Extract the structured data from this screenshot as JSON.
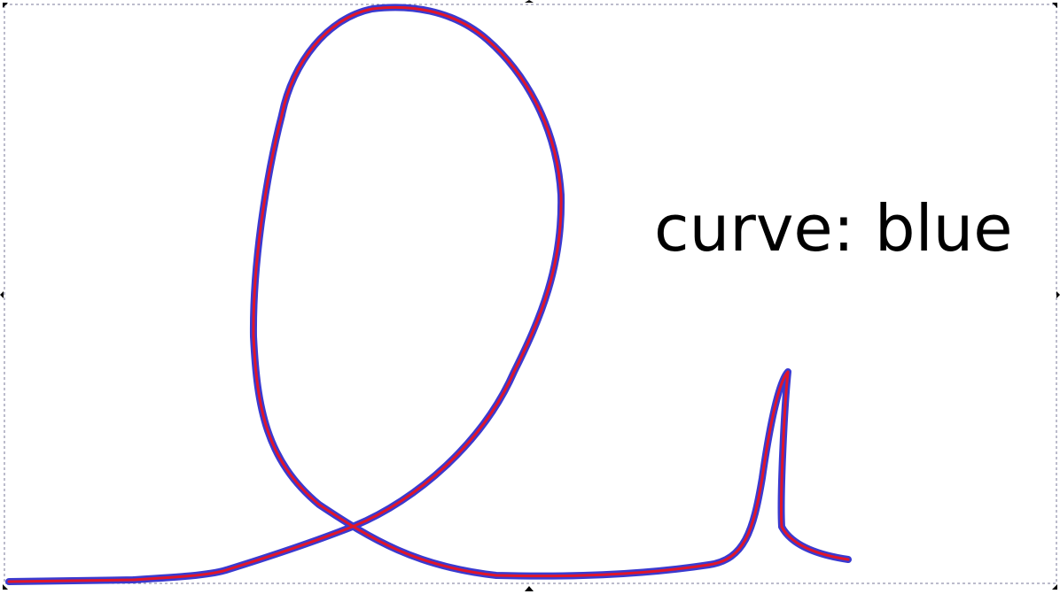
{
  "label": {
    "text": "curve: blue"
  },
  "colors": {
    "blue_curve": "#3a3ad0",
    "red_curve": "#e0162a",
    "selection_border": "#7a7a9a",
    "handle": "#000000"
  }
}
